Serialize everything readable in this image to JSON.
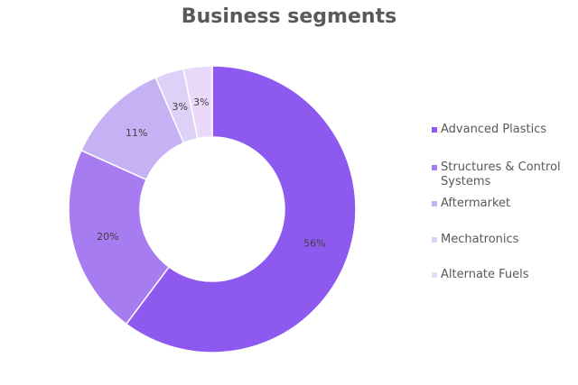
{
  "chart_data": {
    "type": "pie",
    "title": "Business segments",
    "categories": [
      "Advanced Plastics",
      "Structures & Control Systems",
      "Aftermarket",
      "Mechatronics",
      "Alternate Fuels"
    ],
    "values": [
      56,
      20,
      11,
      3,
      3
    ],
    "labels": [
      "56%",
      "20%",
      "11%",
      "3%",
      "3%"
    ],
    "colors": [
      "#8e59ee",
      "#a77cf1",
      "#c6b1f5",
      "#ddd1f8",
      "#ead9fa"
    ],
    "donut": true,
    "legend_position": "right"
  }
}
